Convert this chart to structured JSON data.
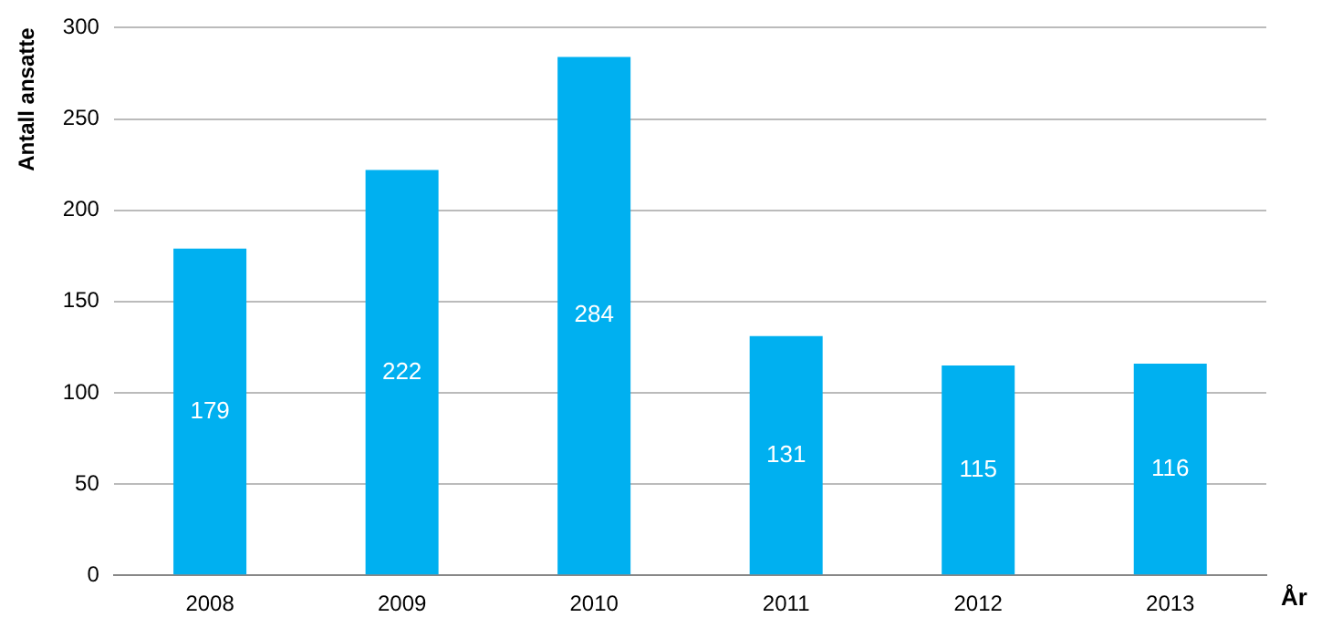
{
  "chart_data": {
    "type": "bar",
    "xlabel": "År",
    "ylabel": "Antall ansatte",
    "categories": [
      "2008",
      "2009",
      "2010",
      "2011",
      "2012",
      "2013"
    ],
    "values": [
      179,
      222,
      284,
      131,
      115,
      116
    ],
    "color": "#00b0f0",
    "ylim": [
      0,
      300
    ],
    "yticks": [
      0,
      50,
      100,
      150,
      200,
      250,
      300
    ],
    "grid": "y",
    "data_labels": true,
    "legend": false
  }
}
